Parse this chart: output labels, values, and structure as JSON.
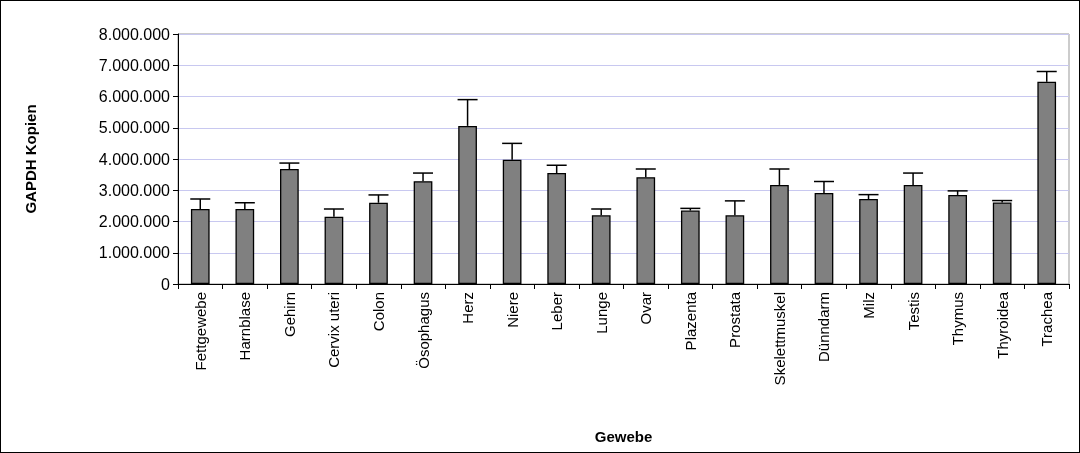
{
  "chart_data": {
    "type": "bar",
    "xlabel": "Gewebe",
    "ylabel": "GAPDH Kopien",
    "categories": [
      "Fettgewebe",
      "Harnblase",
      "Gehirn",
      "Cervix uteri",
      "Colon",
      "Ösophagus",
      "Herz",
      "Niere",
      "Leber",
      "Lunge",
      "Ovar",
      "Plazenta",
      "Prostata",
      "Skelettmuskel",
      "Dünndarm",
      "Milz",
      "Testis",
      "Thymus",
      "Thyroidea",
      "Trachea"
    ],
    "values": [
      2400000,
      2400000,
      3680000,
      2150000,
      2600000,
      3290000,
      5060000,
      3980000,
      3550000,
      2200000,
      3420000,
      2350000,
      2200000,
      3170000,
      2910000,
      2720000,
      3170000,
      2850000,
      2610000,
      6470000
    ],
    "errors": [
      [
        2400000,
        2720000
      ],
      [
        2400000,
        2600000
      ],
      [
        3680000,
        3870000
      ],
      [
        2150000,
        2400000
      ],
      [
        2600000,
        2850000
      ],
      [
        3290000,
        3550000
      ],
      [
        5060000,
        5900000
      ],
      [
        3980000,
        4500000
      ],
      [
        3550000,
        3800000
      ],
      [
        2200000,
        2400000
      ],
      [
        3420000,
        3680000
      ],
      [
        2350000,
        2420000
      ],
      [
        2200000,
        2660000
      ],
      [
        3170000,
        3680000
      ],
      [
        2910000,
        3280000
      ],
      [
        2720000,
        2860000
      ],
      [
        3170000,
        3550000
      ],
      [
        2850000,
        2980000
      ],
      [
        2610000,
        2670000
      ],
      [
        6470000,
        6800000
      ]
    ],
    "color": "#808080",
    "ylim": [
      0,
      8000000
    ],
    "yticks": [
      0,
      {
        "value": 1000000,
        "label": "1.000.000"
      },
      {
        "value": 2000000,
        "label": "2.000.000"
      },
      {
        "value": 3000000,
        "label": "3.000.000"
      },
      {
        "value": 4000000,
        "label": "4.000.000"
      },
      {
        "value": 5000000,
        "label": "5.000.000"
      },
      {
        "value": 6000000,
        "label": "6.000.000"
      },
      {
        "value": 7000000,
        "label": "7.000.000"
      },
      {
        "value": 8000000,
        "label": "8.000.000"
      }
    ],
    "grid": "y"
  }
}
